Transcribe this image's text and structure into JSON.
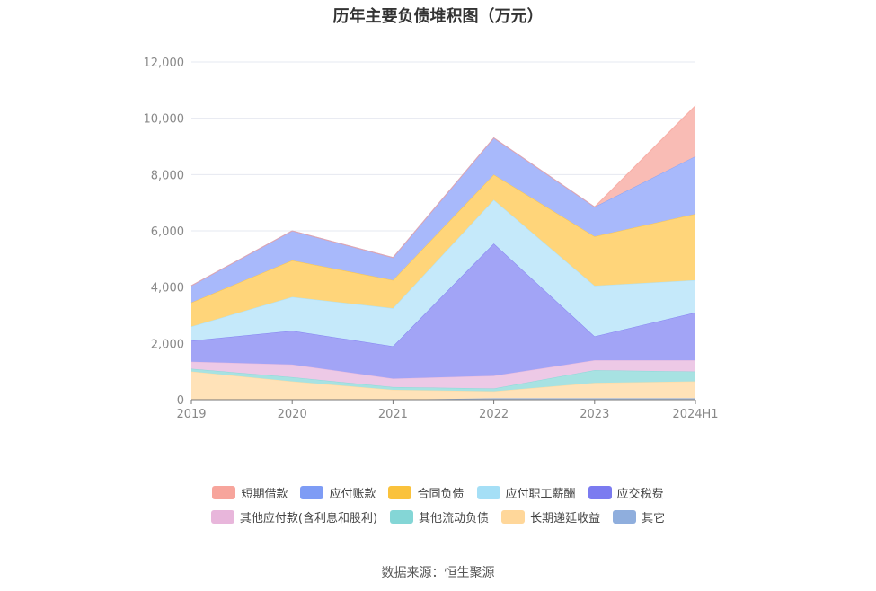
{
  "chart_data": {
    "type": "area",
    "title": "历年主要负债堆积图（万元）",
    "source": "数据来源：恒生聚源",
    "xlabel": "",
    "ylabel": "",
    "ylim": [
      0,
      12000
    ],
    "yticks": [
      "0",
      "2,000",
      "4,000",
      "6,000",
      "8,000",
      "10,000",
      "12,000"
    ],
    "categories": [
      "2019",
      "2020",
      "2021",
      "2022",
      "2023",
      "2024H1"
    ],
    "stacked": true,
    "legend_position": "bottom",
    "series": [
      {
        "name": "短期借款",
        "color": "#F7A59C",
        "fill": "#F9BCB5",
        "values": [
          0,
          0,
          0,
          0,
          0,
          1800
        ]
      },
      {
        "name": "应付账款",
        "color": "#7E9CF5",
        "fill": "#A8B9FB",
        "values": [
          600,
          1050,
          800,
          1300,
          1050,
          2050
        ]
      },
      {
        "name": "合同负债",
        "color": "#FAC23C",
        "fill": "#FFD57A",
        "values": [
          850,
          1300,
          1000,
          900,
          1750,
          2350
        ]
      },
      {
        "name": "应付职工薪酬",
        "color": "#A5DFF6",
        "fill": "#C5E9FA",
        "values": [
          500,
          1200,
          1350,
          1550,
          1800,
          1150
        ]
      },
      {
        "name": "应交税费",
        "color": "#7B7BF0",
        "fill": "#A2A4F6",
        "values": [
          750,
          1200,
          1150,
          4700,
          850,
          1700
        ]
      },
      {
        "name": "其他应付款(含利息和股利)",
        "color": "#E8B6DB",
        "fill": "#EDC9E6",
        "values": [
          250,
          450,
          300,
          450,
          350,
          400
        ]
      },
      {
        "name": "其他流动负债",
        "color": "#84D6D6",
        "fill": "#A7E2E2",
        "values": [
          100,
          150,
          100,
          100,
          450,
          350
        ]
      },
      {
        "name": "长期递延收益",
        "color": "#FFD79A",
        "fill": "#FFE2B8",
        "values": [
          1000,
          650,
          350,
          250,
          550,
          600
        ]
      },
      {
        "name": "其它",
        "color": "#8FAEDD",
        "fill": "#A9C0E6",
        "values": [
          0,
          0,
          0,
          50,
          50,
          50
        ]
      }
    ]
  }
}
